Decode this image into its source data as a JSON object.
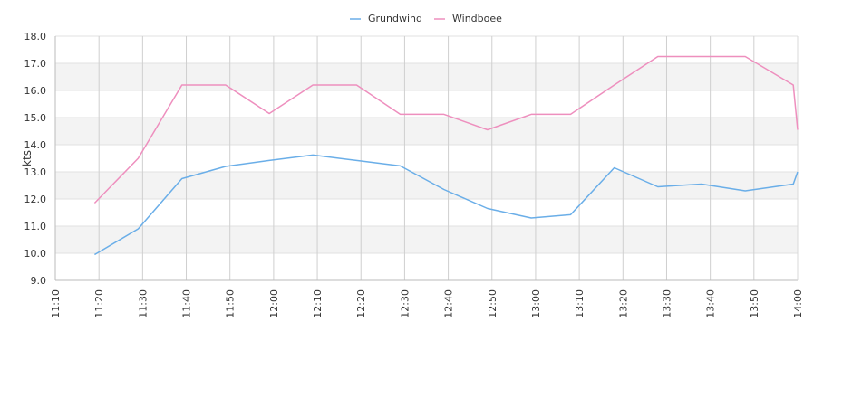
{
  "chart_data": {
    "type": "line",
    "ylabel": "kts",
    "ylim": [
      9.0,
      18.0
    ],
    "y_ticks": [
      "9.0",
      "10.0",
      "11.0",
      "12.0",
      "13.0",
      "14.0",
      "15.0",
      "16.0",
      "17.0",
      "18.0"
    ],
    "x_ticks": [
      "11:10",
      "11:20",
      "11:30",
      "11:40",
      "11:50",
      "12:00",
      "12:10",
      "12:20",
      "12:30",
      "12:40",
      "12:50",
      "13:00",
      "13:10",
      "13:20",
      "13:30",
      "13:40",
      "13:50",
      "14:00"
    ],
    "x_range": [
      "11:10",
      "14:00"
    ],
    "grid": true,
    "legend_position": "top-center",
    "series": [
      {
        "name": "Grundwind",
        "color": "#6aaee8",
        "points": [
          [
            "11:19",
            9.95
          ],
          [
            "11:29",
            10.9
          ],
          [
            "11:39",
            12.75
          ],
          [
            "11:49",
            13.2
          ],
          [
            "11:59",
            13.42
          ],
          [
            "12:09",
            13.62
          ],
          [
            "12:19",
            13.42
          ],
          [
            "12:29",
            13.22
          ],
          [
            "12:39",
            12.35
          ],
          [
            "12:49",
            11.65
          ],
          [
            "12:59",
            11.3
          ],
          [
            "13:08",
            11.42
          ],
          [
            "13:18",
            13.15
          ],
          [
            "13:28",
            12.45
          ],
          [
            "13:38",
            12.55
          ],
          [
            "13:48",
            12.3
          ],
          [
            "13:59",
            12.55
          ],
          [
            "14:00",
            13.0
          ]
        ]
      },
      {
        "name": "Windboee",
        "color": "#ee8fbe",
        "points": [
          [
            "11:19",
            11.85
          ],
          [
            "11:29",
            13.5
          ],
          [
            "11:39",
            16.2
          ],
          [
            "11:49",
            16.2
          ],
          [
            "11:59",
            15.15
          ],
          [
            "12:09",
            16.2
          ],
          [
            "12:19",
            16.2
          ],
          [
            "12:29",
            15.12
          ],
          [
            "12:39",
            15.12
          ],
          [
            "12:49",
            14.55
          ],
          [
            "12:59",
            15.12
          ],
          [
            "13:08",
            15.12
          ],
          [
            "13:18",
            16.2
          ],
          [
            "13:28",
            17.25
          ],
          [
            "13:38",
            17.25
          ],
          [
            "13:48",
            17.25
          ],
          [
            "13:59",
            16.2
          ],
          [
            "14:00",
            14.55
          ]
        ]
      }
    ]
  }
}
